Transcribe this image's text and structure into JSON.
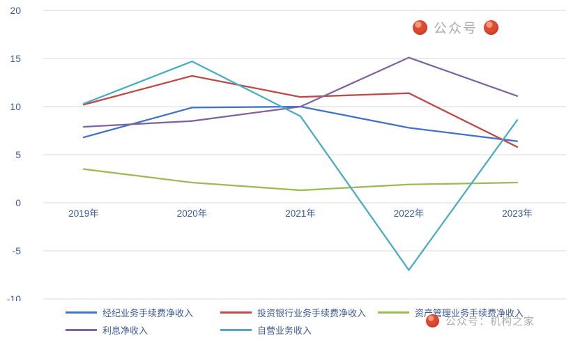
{
  "watermarks": {
    "top": "公众号",
    "bottom": "公众号：机构之家"
  },
  "chart_data": {
    "type": "line",
    "title": "",
    "xlabel": "",
    "ylabel": "",
    "categories": [
      "2019年",
      "2020年",
      "2021年",
      "2022年",
      "2023年"
    ],
    "series": [
      {
        "name": "经纪业务手续费净收入",
        "color": "#4472C4",
        "values": [
          6.8,
          9.9,
          10.0,
          7.8,
          6.4
        ]
      },
      {
        "name": "投资银行业务手续费净收入",
        "color": "#BE4B48",
        "values": [
          10.2,
          13.2,
          11.0,
          11.4,
          5.8
        ]
      },
      {
        "name": "资产管理业务手续费净收入",
        "color": "#9BBB59",
        "values": [
          3.5,
          2.1,
          1.3,
          1.9,
          2.1
        ]
      },
      {
        "name": "利息净收入",
        "color": "#8064A2",
        "values": [
          7.9,
          8.5,
          10.0,
          15.1,
          11.1
        ]
      },
      {
        "name": "自营业务收入",
        "color": "#4BACC6",
        "values": [
          10.3,
          14.7,
          9.0,
          -7.0,
          8.6
        ]
      }
    ],
    "ylim": [
      -10,
      20
    ],
    "yticks": [
      20,
      15,
      10,
      5,
      0,
      -5,
      -10
    ],
    "grid": true,
    "grid_color": "#D9D9D9",
    "text_color": "#3E5A94",
    "legend_position": "bottom",
    "legend_rows": [
      [
        0,
        1,
        2
      ],
      [
        3,
        4
      ]
    ]
  }
}
